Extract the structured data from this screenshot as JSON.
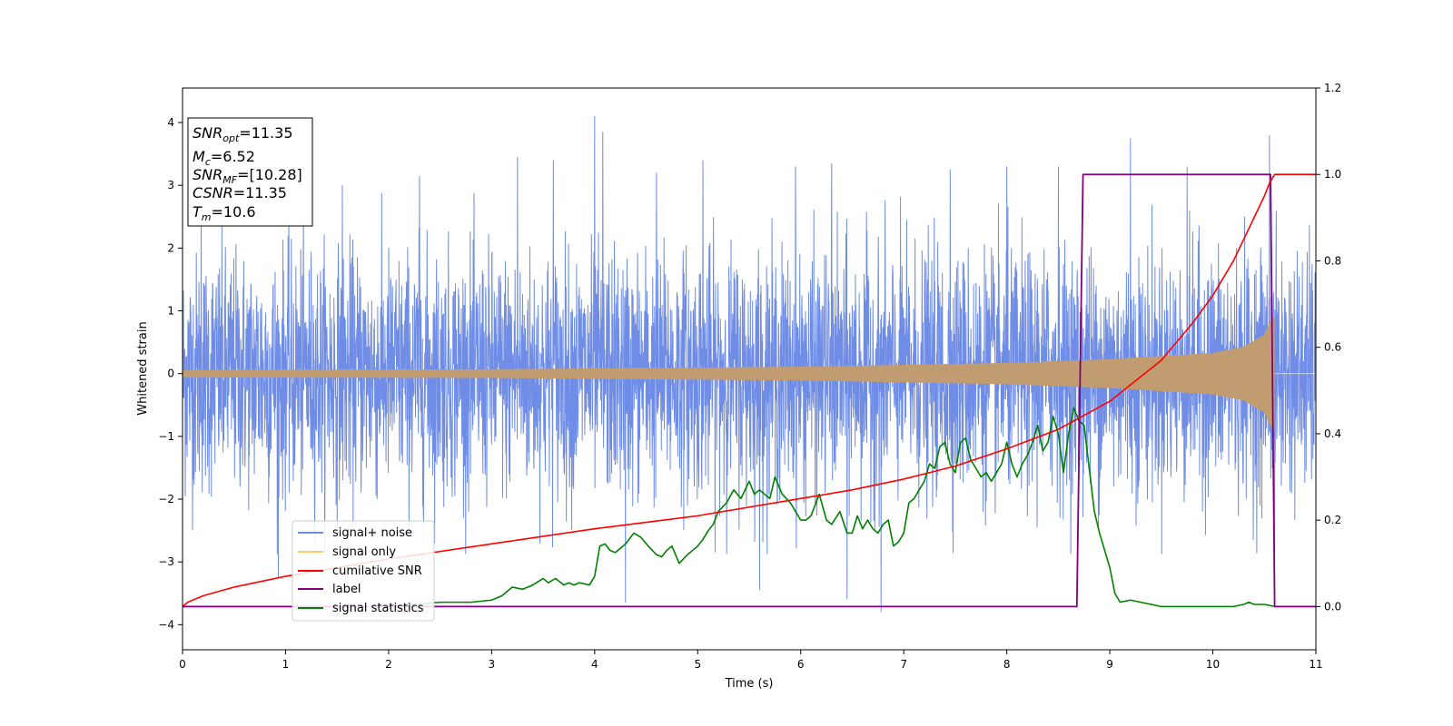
{
  "chart_data": {
    "type": "line",
    "xlabel": "Time (s)",
    "ylabel": "Whitened strain",
    "xlim": [
      0,
      11
    ],
    "ylim": [
      -4.4,
      4.55
    ],
    "y2lim": [
      -0.1,
      1.2
    ],
    "xticks": [
      "0",
      "1",
      "2",
      "3",
      "4",
      "5",
      "6",
      "7",
      "8",
      "9",
      "10",
      "11"
    ],
    "yticks": [
      "−4",
      "−3",
      "−2",
      "−1",
      "0",
      "1",
      "2",
      "3",
      "4"
    ],
    "y2ticks": [
      "0.0",
      "0.2",
      "0.4",
      "0.6",
      "0.8",
      "1.0",
      "1.2"
    ],
    "annotation": {
      "snr_opt": {
        "base": "SNR",
        "sub": "opt",
        "value": "=11.35"
      },
      "mc": {
        "base": "M",
        "sub": "c",
        "value": "=6.52"
      },
      "snr_mf": {
        "base": "SNR",
        "sub": "MF",
        "value": "=[10.28]"
      },
      "csnr": {
        "base": "CSNR",
        "value": "=11.35"
      },
      "tm": {
        "base": "T",
        "sub": "m",
        "value": "=10.6"
      }
    },
    "legend": {
      "position": "lower-left",
      "entries": [
        "signal+ noise",
        "signal only",
        "cumilative SNR",
        "label",
        "signal statistics"
      ]
    },
    "colors": {
      "noise": "#6f8de6",
      "signal": "#ffc56e",
      "signal_overlay": "#c09c70",
      "snr": "#ff0000",
      "label": "#800080",
      "stats": "#008000"
    },
    "series": [
      {
        "name": "signal+ noise",
        "axis": "left",
        "kind": "noise",
        "envelope": [
          [
            0,
            2.3
          ],
          [
            11,
            2.3
          ]
        ],
        "peaks": [
          [
            0.18,
            3.0
          ],
          [
            0.93,
            -3.25
          ],
          [
            1.55,
            3.0
          ],
          [
            2.3,
            3.15
          ],
          [
            3.25,
            3.45
          ],
          [
            3.6,
            3.4
          ],
          [
            4.0,
            4.1
          ],
          [
            4.08,
            3.85
          ],
          [
            4.3,
            -3.65
          ],
          [
            4.6,
            3.2
          ],
          [
            5.05,
            3.4
          ],
          [
            5.6,
            -3.45
          ],
          [
            5.95,
            3.3
          ],
          [
            6.3,
            3.35
          ],
          [
            6.45,
            -3.6
          ],
          [
            6.78,
            -3.8
          ],
          [
            7.45,
            3.25
          ],
          [
            8.0,
            3.3
          ],
          [
            8.5,
            3.3
          ],
          [
            9.2,
            3.75
          ],
          [
            9.75,
            3.3
          ],
          [
            10.55,
            3.8
          ],
          [
            10.6,
            -3.55
          ]
        ]
      },
      {
        "name": "signal only",
        "axis": "left",
        "kind": "chirp",
        "amplitude": [
          [
            0,
            0.06
          ],
          [
            3,
            0.07
          ],
          [
            6,
            0.11
          ],
          [
            8,
            0.17
          ],
          [
            9,
            0.23
          ],
          [
            10,
            0.33
          ],
          [
            10.3,
            0.43
          ],
          [
            10.5,
            0.62
          ],
          [
            10.55,
            0.82
          ],
          [
            10.6,
            0.92
          ]
        ],
        "merger_time": 10.6
      },
      {
        "name": "cumilative SNR",
        "axis": "right",
        "x": [
          0,
          0.05,
          0.2,
          0.5,
          1,
          2,
          3,
          4,
          5,
          6,
          6.5,
          7,
          7.5,
          8,
          8.5,
          9,
          9.5,
          9.8,
          10,
          10.2,
          10.3,
          10.4,
          10.5,
          10.55,
          10.6,
          10.62,
          11
        ],
        "values": [
          0.0,
          0.01,
          0.025,
          0.045,
          0.07,
          0.11,
          0.145,
          0.18,
          0.21,
          0.25,
          0.27,
          0.295,
          0.325,
          0.365,
          0.41,
          0.475,
          0.57,
          0.655,
          0.72,
          0.8,
          0.85,
          0.9,
          0.95,
          0.98,
          1.0,
          1.0,
          1.0
        ]
      },
      {
        "name": "label",
        "axis": "right",
        "x": [
          0,
          8.68,
          8.74,
          10.56,
          10.6,
          11
        ],
        "values": [
          0,
          0,
          1,
          1,
          0,
          0
        ]
      },
      {
        "name": "signal statistics",
        "axis": "right",
        "x": [
          0,
          1,
          2,
          2.5,
          2.8,
          3.0,
          3.1,
          3.2,
          3.3,
          3.4,
          3.5,
          3.55,
          3.62,
          3.7,
          3.75,
          3.8,
          3.85,
          3.95,
          4.0,
          4.05,
          4.1,
          4.15,
          4.2,
          4.3,
          4.38,
          4.45,
          4.52,
          4.6,
          4.65,
          4.7,
          4.75,
          4.82,
          4.9,
          5.0,
          5.05,
          5.1,
          5.15,
          5.2,
          5.28,
          5.35,
          5.42,
          5.48,
          5.5,
          5.55,
          5.6,
          5.65,
          5.7,
          5.75,
          5.82,
          5.9,
          5.95,
          6.0,
          6.05,
          6.1,
          6.18,
          6.25,
          6.3,
          6.38,
          6.45,
          6.5,
          6.55,
          6.6,
          6.65,
          6.7,
          6.75,
          6.8,
          6.85,
          6.9,
          6.95,
          7.0,
          7.05,
          7.1,
          7.15,
          7.2,
          7.25,
          7.3,
          7.35,
          7.4,
          7.45,
          7.5,
          7.55,
          7.6,
          7.65,
          7.7,
          7.75,
          7.8,
          7.85,
          7.9,
          7.95,
          8.0,
          8.05,
          8.1,
          8.15,
          8.2,
          8.25,
          8.3,
          8.35,
          8.4,
          8.45,
          8.5,
          8.55,
          8.6,
          8.65,
          8.7,
          8.75,
          8.8,
          8.85,
          8.9,
          9.0,
          9.05,
          9.1,
          9.2,
          9.3,
          9.4,
          9.5,
          10.0,
          10.2,
          10.3,
          10.35,
          10.4,
          10.5,
          10.6,
          11.0
        ],
        "values": [
          0.0,
          0.0,
          0.0,
          0.01,
          0.01,
          0.015,
          0.025,
          0.045,
          0.04,
          0.05,
          0.065,
          0.055,
          0.065,
          0.05,
          0.055,
          0.05,
          0.055,
          0.05,
          0.07,
          0.14,
          0.145,
          0.13,
          0.125,
          0.145,
          0.17,
          0.16,
          0.14,
          0.12,
          0.115,
          0.13,
          0.14,
          0.1,
          0.12,
          0.14,
          0.155,
          0.175,
          0.19,
          0.22,
          0.24,
          0.27,
          0.25,
          0.28,
          0.29,
          0.26,
          0.27,
          0.26,
          0.25,
          0.3,
          0.26,
          0.24,
          0.22,
          0.2,
          0.2,
          0.21,
          0.26,
          0.2,
          0.19,
          0.22,
          0.17,
          0.17,
          0.21,
          0.18,
          0.2,
          0.18,
          0.17,
          0.19,
          0.2,
          0.14,
          0.15,
          0.17,
          0.24,
          0.25,
          0.27,
          0.29,
          0.33,
          0.32,
          0.37,
          0.38,
          0.33,
          0.31,
          0.38,
          0.39,
          0.34,
          0.32,
          0.3,
          0.31,
          0.29,
          0.31,
          0.33,
          0.38,
          0.33,
          0.3,
          0.33,
          0.35,
          0.38,
          0.42,
          0.36,
          0.38,
          0.44,
          0.4,
          0.31,
          0.4,
          0.46,
          0.43,
          0.42,
          0.32,
          0.22,
          0.17,
          0.09,
          0.03,
          0.01,
          0.015,
          0.01,
          0.005,
          0.0,
          0.0,
          0.0,
          0.005,
          0.01,
          0.005,
          0.005,
          0.0,
          0.0
        ]
      }
    ]
  }
}
